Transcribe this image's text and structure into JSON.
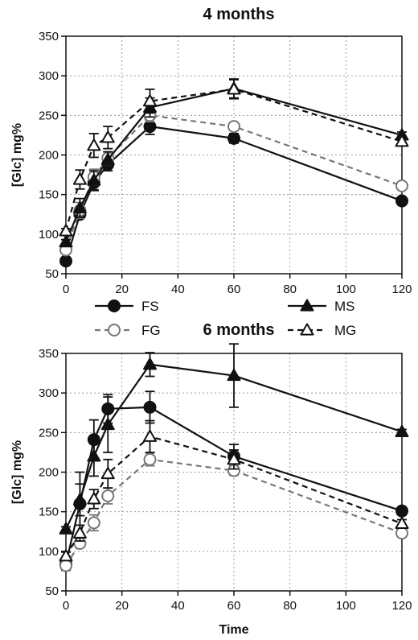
{
  "chart_data": [
    {
      "type": "line",
      "title": "4 months",
      "xlabel": "",
      "ylabel": "[Glc] mg%",
      "xlim": [
        0,
        120
      ],
      "ylim": [
        50,
        350
      ],
      "xticks": [
        0,
        20,
        40,
        60,
        80,
        100,
        120
      ],
      "yticks": [
        50,
        100,
        150,
        200,
        250,
        300,
        350
      ],
      "grid": true,
      "x": [
        0,
        5,
        10,
        15,
        30,
        60,
        120
      ],
      "series": [
        {
          "name": "FS",
          "values": [
            66,
            125,
            165,
            188,
            236,
            221,
            142
          ],
          "errors": [
            3,
            5,
            10,
            8,
            10,
            6,
            3
          ]
        },
        {
          "name": "FG",
          "values": [
            80,
            130,
            172,
            196,
            250,
            236,
            161
          ],
          "errors": [
            3,
            10,
            10,
            8,
            8,
            5,
            3
          ]
        },
        {
          "name": "MS",
          "values": [
            90,
            133,
            168,
            194,
            260,
            284,
            225
          ],
          "errors": [
            3,
            12,
            12,
            10,
            12,
            12,
            4
          ]
        },
        {
          "name": "MG",
          "values": [
            104,
            169,
            212,
            222,
            268,
            283,
            217
          ],
          "errors": [
            3,
            12,
            15,
            14,
            15,
            12,
            5
          ]
        }
      ]
    },
    {
      "type": "line",
      "title": "6 months",
      "xlabel": "Time",
      "ylabel": "[Glc] mg%",
      "xlim": [
        0,
        120
      ],
      "ylim": [
        50,
        350
      ],
      "xticks": [
        0,
        20,
        40,
        60,
        80,
        100,
        120
      ],
      "yticks": [
        50,
        100,
        150,
        200,
        250,
        300,
        350
      ],
      "grid": true,
      "x": [
        0,
        5,
        10,
        15,
        30,
        60,
        120
      ],
      "series": [
        {
          "name": "FS",
          "values": [
            84,
            160,
            241,
            280,
            282,
            220,
            151
          ],
          "errors": [
            8,
            40,
            25,
            18,
            20,
            15,
            5
          ]
        },
        {
          "name": "FG",
          "values": [
            82,
            110,
            136,
            170,
            216,
            202,
            123
          ],
          "errors": [
            5,
            5,
            10,
            10,
            8,
            6,
            4
          ]
        },
        {
          "name": "MS",
          "values": [
            128,
            165,
            220,
            260,
            336,
            322,
            251
          ],
          "errors": [
            3,
            20,
            25,
            35,
            15,
            40,
            3
          ]
        },
        {
          "name": "MG",
          "values": [
            94,
            123,
            166,
            198,
            245,
            216,
            135
          ],
          "errors": [
            5,
            10,
            12,
            18,
            20,
            12,
            5
          ]
        }
      ]
    }
  ],
  "legend": [
    {
      "label": "FS",
      "marker": "filled-circle",
      "line": "solid",
      "color": "#111111"
    },
    {
      "label": "FG",
      "marker": "open-circle",
      "line": "dashed",
      "color": "#777777"
    },
    {
      "label": "MS",
      "marker": "filled-triangle",
      "line": "solid",
      "color": "#111111"
    },
    {
      "label": "MG",
      "marker": "open-triangle",
      "line": "dashed",
      "color": "#111111"
    }
  ],
  "colors": {
    "solid": "#111111",
    "gray": "#777777",
    "grid": "#9a9a9a"
  }
}
